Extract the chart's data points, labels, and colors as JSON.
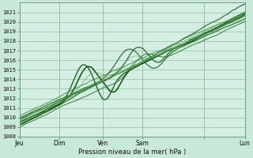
{
  "title": "",
  "xlabel": "Pression niveau de la mer( hPa )",
  "ylabel": "",
  "bg_color": "#c8e8d8",
  "plot_bg_color": "#d4eee4",
  "grid_color": "#90c0a0",
  "line_color_dark": "#1a5c1a",
  "line_color_med": "#2d7a2d",
  "line_color_light": "#5aaa5a",
  "ylim": [
    1008,
    1022
  ],
  "yticks": [
    1008,
    1009,
    1010,
    1011,
    1012,
    1013,
    1014,
    1015,
    1016,
    1017,
    1018,
    1019,
    1020,
    1021
  ],
  "xtick_labels": [
    "Jeu",
    "Dim",
    "Ven",
    "Sam",
    "",
    "Lun"
  ],
  "xtick_positions": [
    0.0,
    0.175,
    0.37,
    0.545,
    0.82,
    1.0
  ],
  "n_points": 200
}
